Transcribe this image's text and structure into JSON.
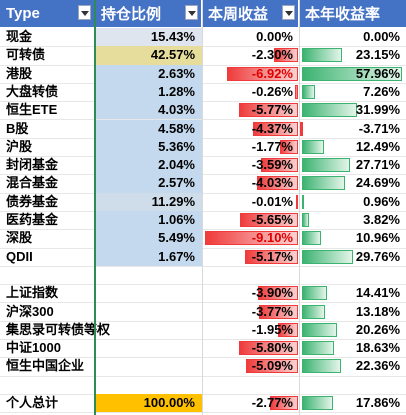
{
  "headers": [
    {
      "label": "Type"
    },
    {
      "label": "持仓比例"
    },
    {
      "label": "本周收益"
    },
    {
      "label": "本年收益率"
    }
  ],
  "rows": [
    {
      "type": "现金",
      "position": "15.43%",
      "week": "0.00%",
      "year": "0.00%",
      "week_pct": 0.0,
      "year_pct": 0.0,
      "pos_shade": "#dfe5ee"
    },
    {
      "type": "可转债",
      "position": "42.57%",
      "week": "-2.30%",
      "year": "23.15%",
      "week_pct": -2.3,
      "year_pct": 23.15,
      "pos_shade": "#e6dc9c"
    },
    {
      "type": "港股",
      "position": "2.63%",
      "week": "-6.92%",
      "year": "57.96%",
      "week_pct": -6.92,
      "year_pct": 57.96,
      "pos_shade": "#c4d9ee"
    },
    {
      "type": "大盘转债",
      "position": "1.28%",
      "week": "-0.26%",
      "year": "7.26%",
      "week_pct": -0.26,
      "year_pct": 7.26,
      "pos_shade": "#c4d9ee"
    },
    {
      "type": "恒生ETE",
      "position": "4.03%",
      "week": "-5.77%",
      "year": "31.99%",
      "week_pct": -5.77,
      "year_pct": 31.99,
      "pos_shade": "#c4d9ee"
    },
    {
      "type": "B股",
      "position": "4.58%",
      "week": "-4.37%",
      "year": "-3.71%",
      "week_pct": -4.37,
      "year_pct": -3.71,
      "pos_shade": "#c4d9ee"
    },
    {
      "type": "沪股",
      "position": "5.36%",
      "week": "-1.77%",
      "year": "12.49%",
      "week_pct": -1.77,
      "year_pct": 12.49,
      "pos_shade": "#c4d9ee"
    },
    {
      "type": "封闭基金",
      "position": "2.04%",
      "week": "-3.59%",
      "year": "27.71%",
      "week_pct": -3.59,
      "year_pct": 27.71,
      "pos_shade": "#c4d9ee"
    },
    {
      "type": "混合基金",
      "position": "2.57%",
      "week": "-4.03%",
      "year": "24.69%",
      "week_pct": -4.03,
      "year_pct": 24.69,
      "pos_shade": "#c4d9ee"
    },
    {
      "type": "债券基金",
      "position": "11.29%",
      "week": "-0.01%",
      "year": "0.96%",
      "week_pct": -0.01,
      "year_pct": 0.96,
      "pos_shade": "#cfdcea"
    },
    {
      "type": "医药基金",
      "position": "1.06%",
      "week": "-5.65%",
      "year": "3.82%",
      "week_pct": -5.65,
      "year_pct": 3.82,
      "pos_shade": "#c4d9ee"
    },
    {
      "type": "深股",
      "position": "5.49%",
      "week": "-9.10%",
      "year": "10.96%",
      "week_pct": -9.1,
      "year_pct": 10.96,
      "pos_shade": "#c4d9ee"
    },
    {
      "type": "QDII",
      "position": "1.67%",
      "week": "-5.17%",
      "year": "29.76%",
      "week_pct": -5.17,
      "year_pct": 29.76,
      "pos_shade": "#c4d9ee"
    },
    {
      "type": "",
      "position": "",
      "week": "",
      "year": "",
      "week_pct": null,
      "year_pct": null,
      "pos_shade": ""
    },
    {
      "type": "上证指数",
      "position": "",
      "week": "-3.90%",
      "year": "14.41%",
      "week_pct": -3.9,
      "year_pct": 14.41,
      "pos_shade": ""
    },
    {
      "type": "沪深300",
      "position": "",
      "week": "-3.77%",
      "year": "13.18%",
      "week_pct": -3.77,
      "year_pct": 13.18,
      "pos_shade": ""
    },
    {
      "type": "集思录可转债等权",
      "position": "",
      "week": "-1.95%",
      "year": "20.26%",
      "week_pct": -1.95,
      "year_pct": 20.26,
      "pos_shade": ""
    },
    {
      "type": "中证1000",
      "position": "",
      "week": "-5.80%",
      "year": "18.63%",
      "week_pct": -5.8,
      "year_pct": 18.63,
      "pos_shade": ""
    },
    {
      "type": "恒生中国企业",
      "position": "",
      "week": "-5.09%",
      "year": "22.36%",
      "week_pct": -5.09,
      "year_pct": 22.36,
      "pos_shade": ""
    },
    {
      "type": "",
      "position": "",
      "week": "",
      "year": "",
      "week_pct": null,
      "year_pct": null,
      "pos_shade": ""
    },
    {
      "type": "个人总计",
      "position": "100.00%",
      "week": "-2.77%",
      "year": "17.86%",
      "week_pct": -2.77,
      "year_pct": 17.86,
      "pos_shade": "#ffc000"
    }
  ],
  "colors": {
    "header_bg": "#4472c4",
    "header_text": "#ffffff",
    "neg_bar": "#ef3b3b",
    "pos_bar": "#3cb371",
    "neg_text": "#e00000",
    "pos_text": "#000000"
  },
  "scale": {
    "week_min": -9.1,
    "year_max": 57.96
  }
}
